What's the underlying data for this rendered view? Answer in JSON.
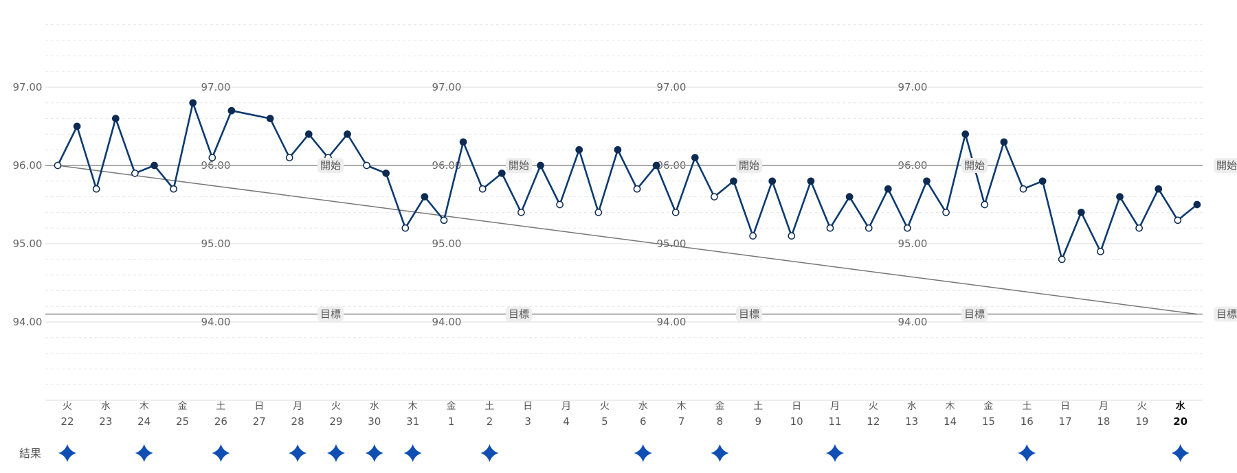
{
  "chart_data": {
    "type": "line",
    "y_axis": {
      "ylim": [
        93.0,
        97.8
      ],
      "major_ticks": [
        97,
        96,
        95,
        94
      ],
      "tick_labels": [
        "97.00",
        "96.00",
        "95.00",
        "94.00"
      ],
      "minor_step": 0.2
    },
    "reference_lines": [
      {
        "value": 96.0,
        "label": "開始"
      },
      {
        "value": 94.1,
        "label": "目標"
      }
    ],
    "trend_line": {
      "from": [
        0,
        96.0
      ],
      "to": [
        59,
        94.1
      ]
    },
    "series": [
      {
        "points": [
          [
            0,
            96.0,
            "open"
          ],
          [
            1,
            96.5,
            "filled"
          ],
          [
            2,
            95.7,
            "open"
          ],
          [
            3,
            96.6,
            "filled"
          ],
          [
            4,
            95.9,
            "open"
          ],
          [
            5,
            96.0,
            "filled"
          ],
          [
            6,
            95.7,
            "open"
          ],
          [
            7,
            96.8,
            "filled"
          ],
          [
            8,
            96.1,
            "open"
          ],
          [
            9,
            96.7,
            "filled"
          ],
          [
            11,
            96.6,
            "filled"
          ],
          [
            12,
            96.1,
            "open"
          ],
          [
            13,
            96.4,
            "filled"
          ],
          [
            14,
            96.1,
            "open"
          ],
          [
            15,
            96.4,
            "filled"
          ],
          [
            16,
            96.0,
            "open"
          ],
          [
            17,
            95.9,
            "filled"
          ],
          [
            18,
            95.2,
            "open"
          ],
          [
            19,
            95.6,
            "filled"
          ],
          [
            20,
            95.3,
            "open"
          ],
          [
            21,
            96.3,
            "filled"
          ],
          [
            22,
            95.7,
            "open"
          ],
          [
            23,
            95.9,
            "filled"
          ],
          [
            24,
            95.4,
            "open"
          ],
          [
            25,
            96.0,
            "filled"
          ],
          [
            26,
            95.5,
            "open"
          ],
          [
            27,
            96.2,
            "filled"
          ],
          [
            28,
            95.4,
            "open"
          ],
          [
            29,
            96.2,
            "filled"
          ],
          [
            30,
            95.7,
            "open"
          ],
          [
            31,
            96.0,
            "filled"
          ],
          [
            32,
            95.4,
            "open"
          ],
          [
            33,
            96.1,
            "filled"
          ],
          [
            34,
            95.6,
            "open"
          ],
          [
            35,
            95.8,
            "filled"
          ],
          [
            36,
            95.1,
            "open"
          ],
          [
            37,
            95.8,
            "filled"
          ],
          [
            38,
            95.1,
            "open"
          ],
          [
            39,
            95.8,
            "filled"
          ],
          [
            40,
            95.2,
            "open"
          ],
          [
            41,
            95.6,
            "filled"
          ],
          [
            42,
            95.2,
            "open"
          ],
          [
            43,
            95.7,
            "filled"
          ],
          [
            44,
            95.2,
            "open"
          ],
          [
            45,
            95.8,
            "filled"
          ],
          [
            46,
            95.4,
            "open"
          ],
          [
            47,
            96.4,
            "filled"
          ],
          [
            48,
            95.5,
            "open"
          ],
          [
            49,
            96.3,
            "filled"
          ],
          [
            50,
            95.7,
            "open"
          ],
          [
            51,
            95.8,
            "filled"
          ],
          [
            52,
            94.8,
            "open"
          ],
          [
            53,
            95.4,
            "filled"
          ],
          [
            54,
            94.9,
            "open"
          ],
          [
            55,
            95.6,
            "filled"
          ],
          [
            56,
            95.2,
            "open"
          ],
          [
            57,
            95.7,
            "filled"
          ],
          [
            58,
            95.3,
            "open"
          ],
          [
            59,
            95.5,
            "filled"
          ]
        ]
      }
    ],
    "x_days": [
      {
        "dow": "火",
        "date": "22",
        "result": true
      },
      {
        "dow": "水",
        "date": "23",
        "result": false
      },
      {
        "dow": "木",
        "date": "24",
        "result": true
      },
      {
        "dow": "金",
        "date": "25",
        "result": false
      },
      {
        "dow": "土",
        "date": "26",
        "result": true
      },
      {
        "dow": "日",
        "date": "27",
        "result": false
      },
      {
        "dow": "月",
        "date": "28",
        "result": true
      },
      {
        "dow": "火",
        "date": "29",
        "result": true
      },
      {
        "dow": "水",
        "date": "30",
        "result": true
      },
      {
        "dow": "木",
        "date": "31",
        "result": true
      },
      {
        "dow": "金",
        "date": "1",
        "result": false
      },
      {
        "dow": "土",
        "date": "2",
        "result": true
      },
      {
        "dow": "日",
        "date": "3",
        "result": false
      },
      {
        "dow": "月",
        "date": "4",
        "result": false
      },
      {
        "dow": "火",
        "date": "5",
        "result": false
      },
      {
        "dow": "水",
        "date": "6",
        "result": true
      },
      {
        "dow": "木",
        "date": "7",
        "result": false
      },
      {
        "dow": "金",
        "date": "8",
        "result": true
      },
      {
        "dow": "土",
        "date": "9",
        "result": false
      },
      {
        "dow": "日",
        "date": "10",
        "result": false
      },
      {
        "dow": "月",
        "date": "11",
        "result": true
      },
      {
        "dow": "火",
        "date": "12",
        "result": false
      },
      {
        "dow": "水",
        "date": "13",
        "result": false
      },
      {
        "dow": "木",
        "date": "14",
        "result": false
      },
      {
        "dow": "金",
        "date": "15",
        "result": false
      },
      {
        "dow": "土",
        "date": "16",
        "result": true
      },
      {
        "dow": "日",
        "date": "17",
        "result": false
      },
      {
        "dow": "月",
        "date": "18",
        "result": false
      },
      {
        "dow": "火",
        "date": "19",
        "result": false
      },
      {
        "dow": "水",
        "date": "20",
        "result": true,
        "today": true
      }
    ],
    "result_row_label": "結果",
    "grid": true
  },
  "colors": {
    "line": "#0b3a6e",
    "marker_filled": "#0d2b52",
    "marker_open_fill": "#ffffff",
    "reference_line": "#aaaaaa",
    "trend_line": "#777777",
    "badge_bg": "#eeeeee",
    "result_marker": "#0f4fb3",
    "grid_major": "#e2e2e2",
    "grid_minor": "#e6e6e6"
  },
  "icons": {
    "result": "sparkle-star-icon"
  }
}
